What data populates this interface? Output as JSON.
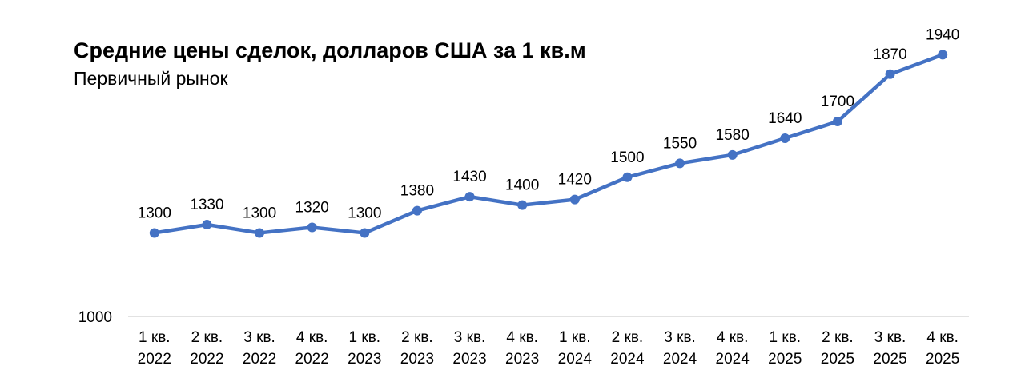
{
  "chart_data": {
    "type": "line",
    "title": "Средние цены сделок, долларов США за 1 кв.м",
    "subtitle": "Первичный рынок",
    "categories": [
      [
        "1 кв.",
        "2022"
      ],
      [
        "2 кв.",
        "2022"
      ],
      [
        "3 кв.",
        "2022"
      ],
      [
        "4 кв.",
        "2022"
      ],
      [
        "1 кв.",
        "2023"
      ],
      [
        "2 кв.",
        "2023"
      ],
      [
        "3 кв.",
        "2023"
      ],
      [
        "4 кв.",
        "2023"
      ],
      [
        "1 кв.",
        "2024"
      ],
      [
        "2 кв.",
        "2024"
      ],
      [
        "3 кв.",
        "2024"
      ],
      [
        "4 кв.",
        "2024"
      ],
      [
        "1 кв.",
        "2025"
      ],
      [
        "2 кв.",
        "2025"
      ],
      [
        "3 кв.",
        "2025"
      ],
      [
        "4 кв.",
        "2025"
      ]
    ],
    "values": [
      1300,
      1330,
      1300,
      1320,
      1300,
      1380,
      1430,
      1400,
      1420,
      1500,
      1550,
      1580,
      1640,
      1700,
      1870,
      1940
    ],
    "data_labels": [
      "1300",
      "1330",
      "1300",
      "1320",
      "1300",
      "1380",
      "1430",
      "1400",
      "1420",
      "1500",
      "1550",
      "1580",
      "1640",
      "1700",
      "1870",
      "1940"
    ],
    "ylim": [
      1000,
      1990
    ],
    "y_tick_labels": [
      "1000"
    ],
    "grid": false,
    "line_color": "#4472C4",
    "axis_color": "#D9D9D9"
  }
}
